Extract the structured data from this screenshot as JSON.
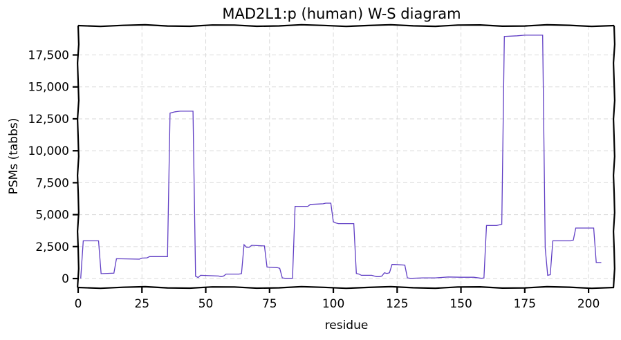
{
  "chart_data": {
    "type": "line",
    "title": "MAD2L1:p (human) W-S diagram",
    "xlabel": "residue",
    "ylabel": "PSMs (tabbs)",
    "xlim": [
      0,
      210
    ],
    "ylim": [
      -700,
      19800
    ],
    "xticks": [
      0,
      25,
      50,
      75,
      100,
      125,
      150,
      175,
      200
    ],
    "yticks": [
      0,
      2500,
      5000,
      7500,
      10000,
      12500,
      15000,
      17500
    ],
    "ytick_labels": [
      "0",
      "2,500",
      "5,000",
      "7,500",
      "10,000",
      "12,500",
      "15,000",
      "17,500"
    ],
    "grid": true,
    "series": [
      {
        "color": "#5f3dc4",
        "x": [
          1,
          2,
          8,
          9,
          14,
          15,
          24,
          25,
          27,
          28,
          35,
          36,
          38,
          40,
          45,
          46,
          47,
          48,
          55,
          56,
          57,
          58,
          63,
          64,
          65,
          66,
          67,
          68,
          73,
          74,
          78,
          79,
          80,
          81,
          84,
          85,
          90,
          91,
          96,
          97,
          99,
          100,
          101,
          102,
          108,
          109,
          110,
          111,
          115,
          116,
          117,
          118,
          119,
          120,
          121,
          122,
          123,
          124,
          128,
          129,
          130,
          131,
          135,
          140,
          145,
          150,
          155,
          158,
          159,
          160,
          164,
          165,
          166,
          167,
          172,
          175,
          182,
          183,
          184,
          185,
          186,
          193,
          194,
          195,
          202,
          203,
          205
        ],
        "y": [
          0,
          2950,
          2950,
          380,
          420,
          1550,
          1520,
          1600,
          1620,
          1720,
          1720,
          12950,
          13050,
          13100,
          13100,
          180,
          80,
          250,
          200,
          150,
          200,
          350,
          350,
          380,
          2650,
          2450,
          2450,
          2600,
          2550,
          900,
          850,
          800,
          50,
          20,
          20,
          5650,
          5650,
          5800,
          5850,
          5900,
          5900,
          4450,
          4350,
          4300,
          4300,
          400,
          350,
          250,
          250,
          200,
          150,
          150,
          200,
          450,
          400,
          450,
          1100,
          1100,
          1050,
          50,
          20,
          20,
          50,
          50,
          120,
          100,
          100,
          20,
          40,
          4150,
          4150,
          4200,
          4250,
          18950,
          19000,
          19050,
          19050,
          2400,
          250,
          300,
          2950,
          2950,
          3000,
          3950,
          3950,
          1250,
          1250
        ]
      }
    ]
  }
}
